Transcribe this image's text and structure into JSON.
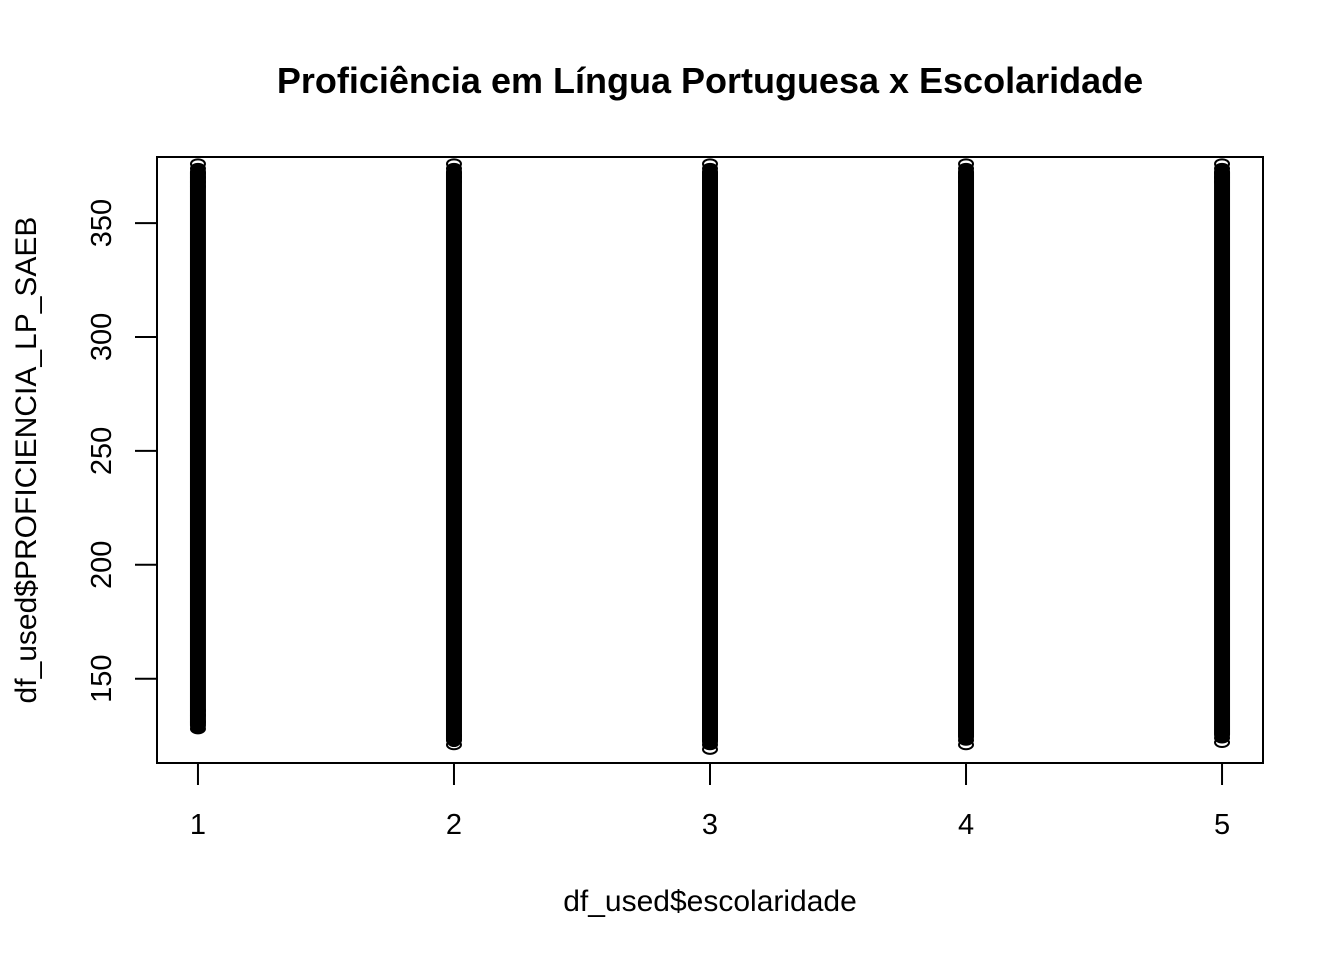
{
  "chart_data": {
    "type": "scatter",
    "title": "Proficiência em Língua Portuguesa x Escolaridade",
    "xlabel": "df_used$escolaridade",
    "ylabel": "df_used$PROFICIENCIA_LP_SAEB",
    "xlim": [
      0.84,
      5.16
    ],
    "ylim": [
      113,
      379
    ],
    "x_ticks": [
      1,
      2,
      3,
      4,
      5
    ],
    "y_ticks": [
      150,
      200,
      250,
      300,
      350
    ],
    "grid": false,
    "legend": "none",
    "marker": "open-circle",
    "color": "#000000",
    "series": [
      {
        "x": 1,
        "y_min": 126,
        "y_max": 376,
        "sparse_low": [
          128,
          131,
          134,
          136
        ],
        "sparse_high": [
          366,
          368,
          370,
          372,
          374,
          376
        ]
      },
      {
        "x": 2,
        "y_min": 120,
        "y_max": 376,
        "sparse_low": [
          121,
          123,
          125
        ],
        "sparse_high": [
          368,
          370,
          372,
          374,
          376
        ]
      },
      {
        "x": 3,
        "y_min": 119,
        "y_max": 376,
        "sparse_low": [
          119,
          121
        ],
        "sparse_high": [
          370,
          372,
          374,
          376
        ]
      },
      {
        "x": 4,
        "y_min": 121,
        "y_max": 376,
        "sparse_low": [
          121,
          123
        ],
        "sparse_high": [
          368,
          370,
          372,
          374,
          376
        ]
      },
      {
        "x": 5,
        "y_min": 122,
        "y_max": 376,
        "sparse_low": [
          122,
          124
        ],
        "sparse_high": [
          368,
          370,
          372,
          374,
          376
        ]
      }
    ]
  }
}
